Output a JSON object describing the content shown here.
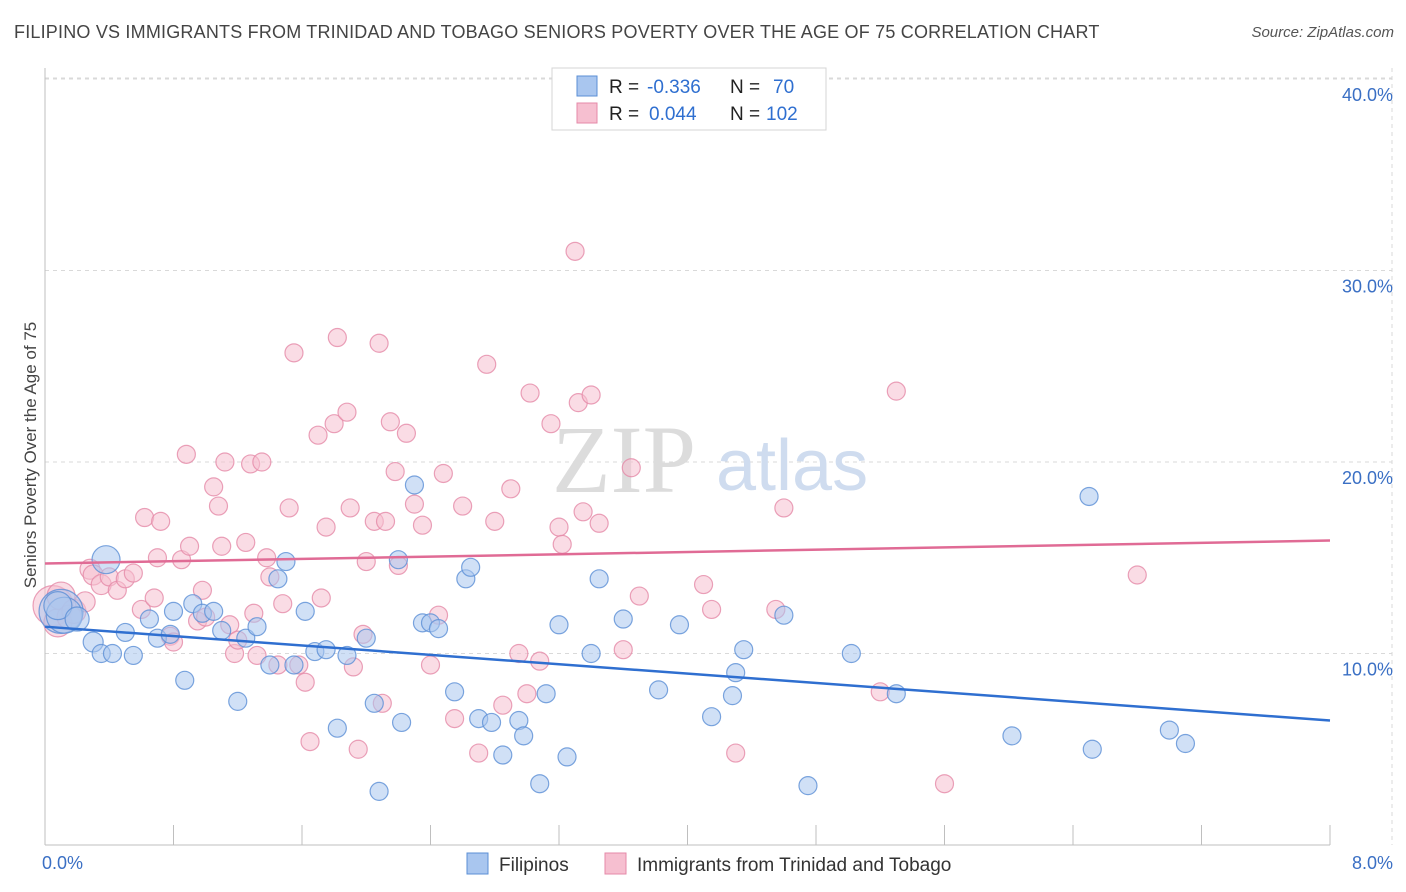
{
  "title": "FILIPINO VS IMMIGRANTS FROM TRINIDAD AND TOBAGO SENIORS POVERTY OVER THE AGE OF 75 CORRELATION CHART",
  "source": "Source: ZipAtlas.com",
  "watermark": {
    "zip": "ZIP",
    "atlas": "atlas"
  },
  "legend_top": [
    {
      "r_label": "R =",
      "r_value": "-0.336",
      "n_label": "N =",
      "n_value": "70"
    },
    {
      "r_label": "R =",
      "r_value": "0.044",
      "n_label": "N =",
      "n_value": "102"
    }
  ],
  "legend_bottom": [
    "Filipinos",
    "Immigrants from Trinidad and Tobago"
  ],
  "colors": {
    "blue_fill": "#a9c6ef",
    "blue_stroke": "#5b8fd6",
    "blue_line": "#2f6fd0",
    "pink_fill": "#f6bfd0",
    "pink_stroke": "#e58aa8",
    "pink_line": "#e06b95",
    "grid": "#d9d9d9",
    "axis_text": "#3a6fc4"
  },
  "chart_data": {
    "type": "scatter",
    "title": "FILIPINO VS IMMIGRANTS FROM TRINIDAD AND TOBAGO SENIORS POVERTY OVER THE AGE OF 75 CORRELATION CHART",
    "xlabel": "",
    "ylabel": "Seniors Poverty Over the Age of 75",
    "xlim": [
      0,
      8
    ],
    "ylim": [
      0,
      40
    ],
    "x_tick_labels": [
      "0.0%",
      "8.0%"
    ],
    "y_ticks": [
      10,
      20,
      30,
      40
    ],
    "y_tick_labels": [
      "10.0%",
      "20.0%",
      "30.0%",
      "40.0%"
    ],
    "grid": true,
    "legend_placement": "top-center",
    "series": [
      {
        "name": "Filipinos",
        "r": -0.336,
        "n": 70,
        "trend": {
          "x0": 0,
          "y0": 11.4,
          "x1": 8,
          "y1": 6.5
        },
        "points": [
          {
            "x": 0.1,
            "y": 12.2,
            "s": 22
          },
          {
            "x": 0.12,
            "y": 12.0,
            "s": 18
          },
          {
            "x": 0.08,
            "y": 12.5,
            "s": 14
          },
          {
            "x": 0.2,
            "y": 11.8,
            "s": 12
          },
          {
            "x": 0.38,
            "y": 14.9,
            "s": 14
          },
          {
            "x": 0.3,
            "y": 10.6,
            "s": 10
          },
          {
            "x": 0.35,
            "y": 10.0,
            "s": 9
          },
          {
            "x": 0.42,
            "y": 10.0,
            "s": 9
          },
          {
            "x": 0.5,
            "y": 11.1,
            "s": 9
          },
          {
            "x": 0.55,
            "y": 9.9,
            "s": 9
          },
          {
            "x": 0.65,
            "y": 11.8,
            "s": 9
          },
          {
            "x": 0.7,
            "y": 10.8,
            "s": 9
          },
          {
            "x": 0.78,
            "y": 11.0,
            "s": 9
          },
          {
            "x": 0.8,
            "y": 12.2,
            "s": 9
          },
          {
            "x": 0.87,
            "y": 8.6,
            "s": 9
          },
          {
            "x": 0.92,
            "y": 12.6,
            "s": 9
          },
          {
            "x": 0.98,
            "y": 12.1,
            "s": 9
          },
          {
            "x": 1.05,
            "y": 12.2,
            "s": 9
          },
          {
            "x": 1.1,
            "y": 11.2,
            "s": 9
          },
          {
            "x": 1.2,
            "y": 7.5,
            "s": 9
          },
          {
            "x": 1.25,
            "y": 10.8,
            "s": 9
          },
          {
            "x": 1.32,
            "y": 11.4,
            "s": 9
          },
          {
            "x": 1.4,
            "y": 9.4,
            "s": 9
          },
          {
            "x": 1.45,
            "y": 13.9,
            "s": 9
          },
          {
            "x": 1.5,
            "y": 14.8,
            "s": 9
          },
          {
            "x": 1.55,
            "y": 9.4,
            "s": 9
          },
          {
            "x": 1.62,
            "y": 12.2,
            "s": 9
          },
          {
            "x": 1.68,
            "y": 10.1,
            "s": 9
          },
          {
            "x": 1.75,
            "y": 10.2,
            "s": 9
          },
          {
            "x": 1.82,
            "y": 6.1,
            "s": 9
          },
          {
            "x": 1.88,
            "y": 9.9,
            "s": 9
          },
          {
            "x": 2.0,
            "y": 10.8,
            "s": 9
          },
          {
            "x": 2.05,
            "y": 7.4,
            "s": 9
          },
          {
            "x": 2.08,
            "y": 2.8,
            "s": 9
          },
          {
            "x": 2.2,
            "y": 14.9,
            "s": 9
          },
          {
            "x": 2.22,
            "y": 6.4,
            "s": 9
          },
          {
            "x": 2.3,
            "y": 18.8,
            "s": 9
          },
          {
            "x": 2.35,
            "y": 11.6,
            "s": 9
          },
          {
            "x": 2.4,
            "y": 11.6,
            "s": 9
          },
          {
            "x": 2.45,
            "y": 11.3,
            "s": 9
          },
          {
            "x": 2.55,
            "y": 8.0,
            "s": 9
          },
          {
            "x": 2.62,
            "y": 13.9,
            "s": 9
          },
          {
            "x": 2.65,
            "y": 14.5,
            "s": 9
          },
          {
            "x": 2.7,
            "y": 6.6,
            "s": 9
          },
          {
            "x": 2.78,
            "y": 6.4,
            "s": 9
          },
          {
            "x": 2.85,
            "y": 4.7,
            "s": 9
          },
          {
            "x": 2.95,
            "y": 6.5,
            "s": 9
          },
          {
            "x": 2.98,
            "y": 5.7,
            "s": 9
          },
          {
            "x": 3.08,
            "y": 3.2,
            "s": 9
          },
          {
            "x": 3.12,
            "y": 7.9,
            "s": 9
          },
          {
            "x": 3.2,
            "y": 11.5,
            "s": 9
          },
          {
            "x": 3.25,
            "y": 4.6,
            "s": 9
          },
          {
            "x": 3.4,
            "y": 10.0,
            "s": 9
          },
          {
            "x": 3.45,
            "y": 13.9,
            "s": 9
          },
          {
            "x": 3.6,
            "y": 11.8,
            "s": 9
          },
          {
            "x": 3.82,
            "y": 8.1,
            "s": 9
          },
          {
            "x": 3.95,
            "y": 11.5,
            "s": 9
          },
          {
            "x": 4.15,
            "y": 6.7,
            "s": 9
          },
          {
            "x": 4.28,
            "y": 7.8,
            "s": 9
          },
          {
            "x": 4.3,
            "y": 9.0,
            "s": 9
          },
          {
            "x": 4.35,
            "y": 10.2,
            "s": 9
          },
          {
            "x": 4.6,
            "y": 12.0,
            "s": 9
          },
          {
            "x": 4.75,
            "y": 3.1,
            "s": 9
          },
          {
            "x": 5.02,
            "y": 10.0,
            "s": 9
          },
          {
            "x": 5.3,
            "y": 7.9,
            "s": 9
          },
          {
            "x": 6.02,
            "y": 5.7,
            "s": 9
          },
          {
            "x": 6.5,
            "y": 18.2,
            "s": 9
          },
          {
            "x": 6.52,
            "y": 5.0,
            "s": 9
          },
          {
            "x": 7.0,
            "y": 6.0,
            "s": 9
          },
          {
            "x": 7.1,
            "y": 5.3,
            "s": 9
          }
        ]
      },
      {
        "name": "Immigrants from Trinidad and Tobago",
        "r": 0.044,
        "n": 102,
        "trend": {
          "x0": 0,
          "y0": 14.7,
          "x1": 8,
          "y1": 15.9
        },
        "points": [
          {
            "x": 0.05,
            "y": 12.5,
            "s": 20
          },
          {
            "x": 0.08,
            "y": 11.6,
            "s": 14
          },
          {
            "x": 0.1,
            "y": 13.0,
            "s": 14
          },
          {
            "x": 0.15,
            "y": 11.9,
            "s": 12
          },
          {
            "x": 0.18,
            "y": 12.2,
            "s": 12
          },
          {
            "x": 0.25,
            "y": 12.7,
            "s": 10
          },
          {
            "x": 0.28,
            "y": 14.4,
            "s": 10
          },
          {
            "x": 0.3,
            "y": 14.1,
            "s": 10
          },
          {
            "x": 0.35,
            "y": 13.6,
            "s": 10
          },
          {
            "x": 0.4,
            "y": 14.0,
            "s": 9
          },
          {
            "x": 0.45,
            "y": 13.3,
            "s": 9
          },
          {
            "x": 0.5,
            "y": 13.9,
            "s": 9
          },
          {
            "x": 0.55,
            "y": 14.2,
            "s": 9
          },
          {
            "x": 0.6,
            "y": 12.3,
            "s": 9
          },
          {
            "x": 0.62,
            "y": 17.1,
            "s": 9
          },
          {
            "x": 0.68,
            "y": 12.9,
            "s": 9
          },
          {
            "x": 0.7,
            "y": 15.0,
            "s": 9
          },
          {
            "x": 0.72,
            "y": 16.9,
            "s": 9
          },
          {
            "x": 0.78,
            "y": 10.9,
            "s": 9
          },
          {
            "x": 0.8,
            "y": 10.6,
            "s": 9
          },
          {
            "x": 0.85,
            "y": 14.9,
            "s": 9
          },
          {
            "x": 0.88,
            "y": 20.4,
            "s": 9
          },
          {
            "x": 0.9,
            "y": 15.6,
            "s": 9
          },
          {
            "x": 0.95,
            "y": 11.7,
            "s": 9
          },
          {
            "x": 0.98,
            "y": 13.3,
            "s": 9
          },
          {
            "x": 1.0,
            "y": 11.9,
            "s": 9
          },
          {
            "x": 1.05,
            "y": 18.7,
            "s": 9
          },
          {
            "x": 1.08,
            "y": 17.7,
            "s": 9
          },
          {
            "x": 1.1,
            "y": 15.6,
            "s": 9
          },
          {
            "x": 1.12,
            "y": 20.0,
            "s": 9
          },
          {
            "x": 1.15,
            "y": 11.5,
            "s": 9
          },
          {
            "x": 1.18,
            "y": 10.0,
            "s": 9
          },
          {
            "x": 1.2,
            "y": 10.7,
            "s": 9
          },
          {
            "x": 1.25,
            "y": 15.8,
            "s": 9
          },
          {
            "x": 1.28,
            "y": 19.9,
            "s": 9
          },
          {
            "x": 1.3,
            "y": 12.1,
            "s": 9
          },
          {
            "x": 1.32,
            "y": 9.9,
            "s": 9
          },
          {
            "x": 1.35,
            "y": 20.0,
            "s": 9
          },
          {
            "x": 1.38,
            "y": 15.0,
            "s": 9
          },
          {
            "x": 1.4,
            "y": 14.0,
            "s": 9
          },
          {
            "x": 1.45,
            "y": 9.4,
            "s": 9
          },
          {
            "x": 1.48,
            "y": 12.6,
            "s": 9
          },
          {
            "x": 1.52,
            "y": 17.6,
            "s": 9
          },
          {
            "x": 1.55,
            "y": 25.7,
            "s": 9
          },
          {
            "x": 1.58,
            "y": 9.4,
            "s": 9
          },
          {
            "x": 1.62,
            "y": 8.5,
            "s": 9
          },
          {
            "x": 1.65,
            "y": 5.4,
            "s": 9
          },
          {
            "x": 1.7,
            "y": 21.4,
            "s": 9
          },
          {
            "x": 1.72,
            "y": 12.9,
            "s": 9
          },
          {
            "x": 1.75,
            "y": 16.6,
            "s": 9
          },
          {
            "x": 1.8,
            "y": 22.0,
            "s": 9
          },
          {
            "x": 1.82,
            "y": 26.5,
            "s": 9
          },
          {
            "x": 1.88,
            "y": 22.6,
            "s": 9
          },
          {
            "x": 1.9,
            "y": 17.6,
            "s": 9
          },
          {
            "x": 1.92,
            "y": 9.3,
            "s": 9
          },
          {
            "x": 1.95,
            "y": 5.0,
            "s": 9
          },
          {
            "x": 1.98,
            "y": 11.0,
            "s": 9
          },
          {
            "x": 2.0,
            "y": 14.8,
            "s": 9
          },
          {
            "x": 2.05,
            "y": 16.9,
            "s": 9
          },
          {
            "x": 2.08,
            "y": 26.2,
            "s": 9
          },
          {
            "x": 2.1,
            "y": 7.4,
            "s": 9
          },
          {
            "x": 2.12,
            "y": 16.9,
            "s": 9
          },
          {
            "x": 2.15,
            "y": 22.1,
            "s": 9
          },
          {
            "x": 2.18,
            "y": 19.5,
            "s": 9
          },
          {
            "x": 2.2,
            "y": 14.6,
            "s": 9
          },
          {
            "x": 2.25,
            "y": 21.5,
            "s": 9
          },
          {
            "x": 2.3,
            "y": 17.8,
            "s": 9
          },
          {
            "x": 2.35,
            "y": 16.7,
            "s": 9
          },
          {
            "x": 2.4,
            "y": 9.4,
            "s": 9
          },
          {
            "x": 2.45,
            "y": 12.0,
            "s": 9
          },
          {
            "x": 2.48,
            "y": 19.4,
            "s": 9
          },
          {
            "x": 2.55,
            "y": 6.6,
            "s": 9
          },
          {
            "x": 2.6,
            "y": 17.7,
            "s": 9
          },
          {
            "x": 2.7,
            "y": 4.8,
            "s": 9
          },
          {
            "x": 2.75,
            "y": 25.1,
            "s": 9
          },
          {
            "x": 2.8,
            "y": 16.9,
            "s": 9
          },
          {
            "x": 2.85,
            "y": 7.3,
            "s": 9
          },
          {
            "x": 2.9,
            "y": 18.6,
            "s": 9
          },
          {
            "x": 2.95,
            "y": 10.0,
            "s": 9
          },
          {
            "x": 3.0,
            "y": 7.9,
            "s": 9
          },
          {
            "x": 3.02,
            "y": 23.6,
            "s": 9
          },
          {
            "x": 3.08,
            "y": 9.6,
            "s": 9
          },
          {
            "x": 3.15,
            "y": 22.0,
            "s": 9
          },
          {
            "x": 3.2,
            "y": 16.6,
            "s": 9
          },
          {
            "x": 3.22,
            "y": 15.7,
            "s": 9
          },
          {
            "x": 3.3,
            "y": 31.0,
            "s": 9
          },
          {
            "x": 3.32,
            "y": 23.1,
            "s": 9
          },
          {
            "x": 3.35,
            "y": 17.4,
            "s": 9
          },
          {
            "x": 3.4,
            "y": 23.5,
            "s": 9
          },
          {
            "x": 3.45,
            "y": 16.8,
            "s": 9
          },
          {
            "x": 3.6,
            "y": 10.2,
            "s": 9
          },
          {
            "x": 3.65,
            "y": 19.7,
            "s": 9
          },
          {
            "x": 3.7,
            "y": 13.0,
            "s": 9
          },
          {
            "x": 4.1,
            "y": 13.6,
            "s": 9
          },
          {
            "x": 4.15,
            "y": 12.3,
            "s": 9
          },
          {
            "x": 4.3,
            "y": 4.8,
            "s": 9
          },
          {
            "x": 4.55,
            "y": 12.3,
            "s": 9
          },
          {
            "x": 4.6,
            "y": 17.6,
            "s": 9
          },
          {
            "x": 5.2,
            "y": 8.0,
            "s": 9
          },
          {
            "x": 5.3,
            "y": 23.7,
            "s": 9
          },
          {
            "x": 5.6,
            "y": 3.2,
            "s": 9
          },
          {
            "x": 6.8,
            "y": 14.1,
            "s": 9
          }
        ]
      }
    ]
  }
}
